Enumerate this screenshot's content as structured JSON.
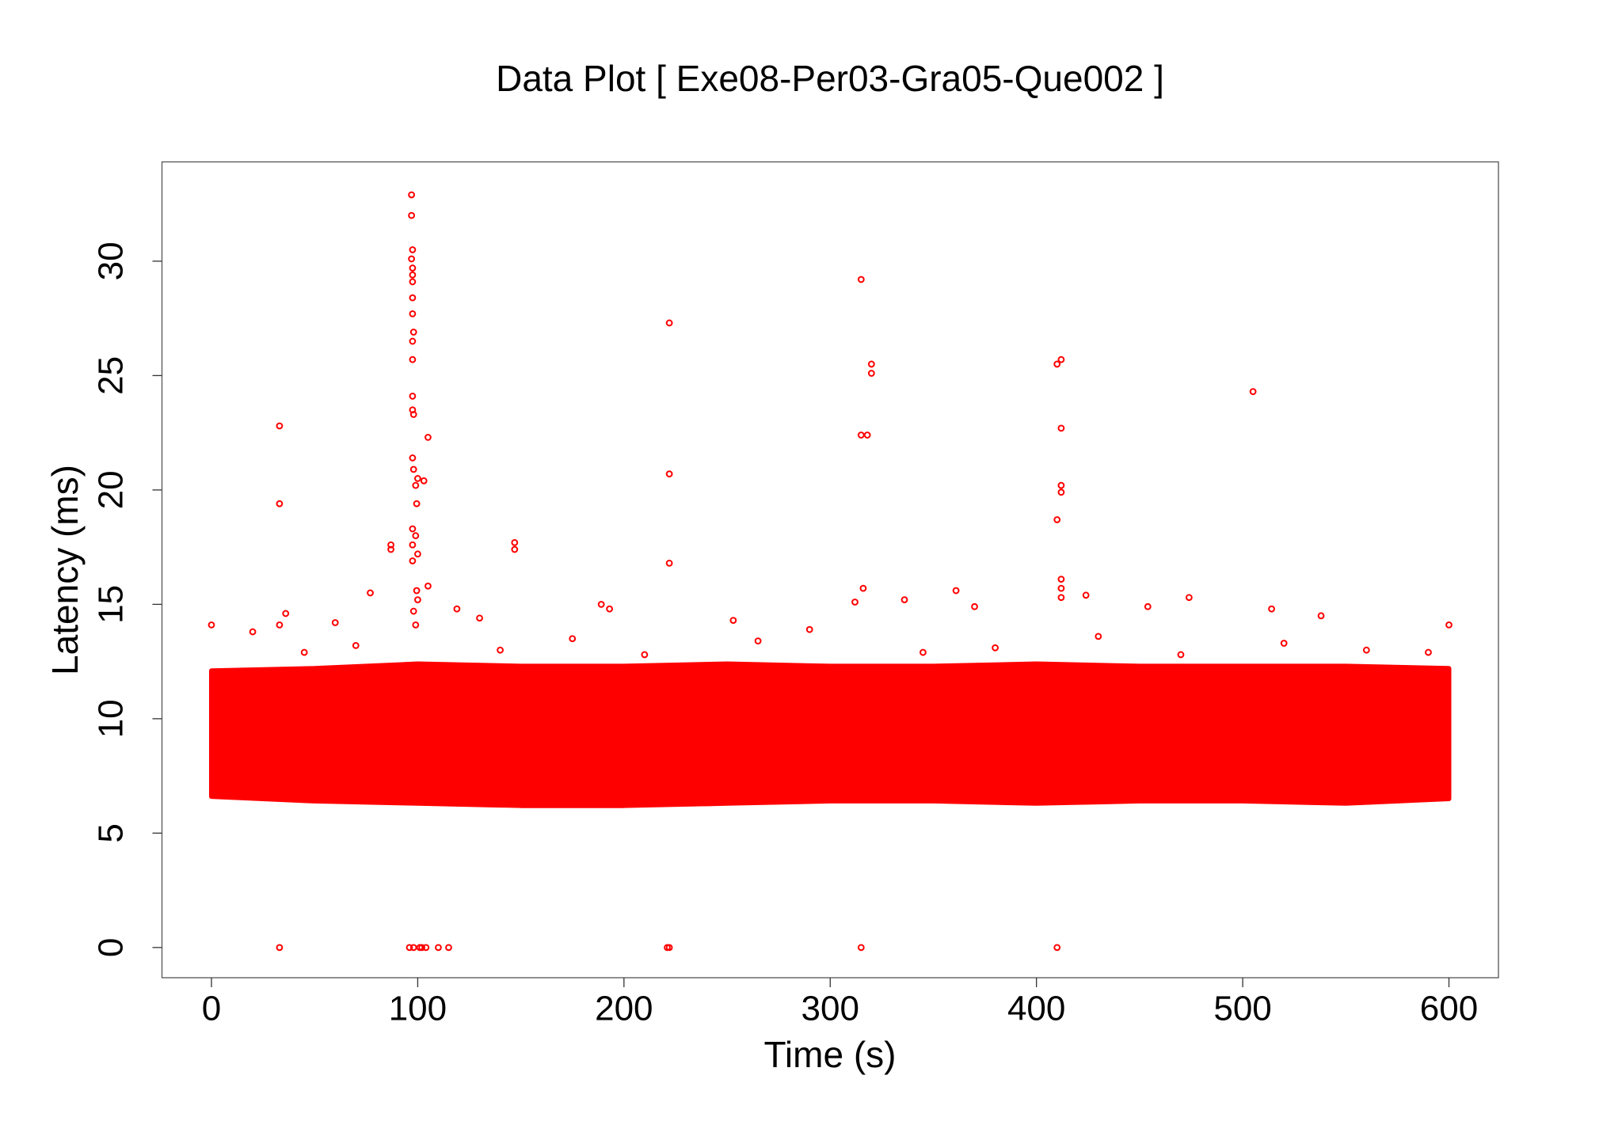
{
  "chart_data": {
    "type": "scatter",
    "title": "Data Plot [ Exe08-Per03-Gra05-Que002 ]",
    "x_label": "Time (s)",
    "y_label": "Latency (ms)",
    "xlim": [
      -24,
      624
    ],
    "ylim": [
      -1.32,
      34.34
    ],
    "xticks": [
      0,
      100,
      200,
      300,
      400,
      500,
      600
    ],
    "yticks": [
      0,
      5,
      10,
      15,
      20,
      25,
      30
    ],
    "color": "#ff0000",
    "band": {
      "x": [
        0,
        50,
        100,
        150,
        200,
        250,
        300,
        350,
        400,
        450,
        500,
        550,
        600
      ],
      "upper": [
        12.1,
        12.2,
        12.4,
        12.3,
        12.3,
        12.4,
        12.3,
        12.3,
        12.4,
        12.3,
        12.3,
        12.3,
        12.2
      ],
      "lower": [
        6.6,
        6.4,
        6.3,
        6.2,
        6.2,
        6.3,
        6.4,
        6.4,
        6.3,
        6.4,
        6.4,
        6.3,
        6.5
      ]
    },
    "series": [
      {
        "color": "#ff0000",
        "x": [
          33,
          33,
          33,
          33,
          97,
          97,
          97.5,
          97,
          97.5,
          97.5,
          97.5,
          97.5,
          97.5,
          98,
          97.5,
          97.5,
          97.5,
          97.5,
          98,
          97.5,
          98,
          100,
          99,
          99.5,
          97.5,
          99,
          97.5,
          100,
          97.5,
          99.5,
          100,
          98,
          99,
          105,
          103,
          105,
          87,
          87,
          77,
          147,
          147,
          222,
          222,
          222,
          222,
          315,
          315,
          315,
          316,
          312,
          320,
          320,
          318,
          410,
          410,
          410,
          412,
          412,
          412,
          412,
          412,
          412,
          412,
          505,
          96,
          98,
          101,
          102,
          104,
          110,
          115,
          221,
          189,
          193,
          253,
          336,
          361,
          370,
          424,
          454,
          474,
          514,
          538,
          600,
          0,
          119,
          130,
          36,
          60,
          20,
          45,
          70,
          140,
          175,
          210,
          265,
          290,
          345,
          380,
          430,
          470,
          520,
          560,
          590
        ],
        "values": [
          22.8,
          19.4,
          0,
          14.1,
          32.9,
          32.0,
          30.5,
          30.1,
          29.7,
          29.4,
          29.1,
          28.4,
          27.7,
          26.9,
          26.5,
          25.7,
          24.1,
          23.5,
          23.3,
          21.4,
          20.9,
          20.5,
          20.2,
          19.4,
          18.3,
          18.0,
          17.6,
          17.2,
          16.9,
          15.6,
          15.2,
          14.7,
          14.1,
          22.3,
          20.4,
          15.8,
          17.6,
          17.4,
          15.5,
          17.7,
          17.4,
          27.3,
          20.7,
          16.8,
          0,
          29.2,
          22.4,
          0,
          15.7,
          15.1,
          25.5,
          25.1,
          22.4,
          25.5,
          18.7,
          0,
          25.7,
          22.7,
          20.2,
          19.9,
          16.1,
          15.7,
          15.3,
          24.3,
          0,
          0,
          0,
          0,
          0,
          0,
          0,
          0,
          15.0,
          14.8,
          14.3,
          15.2,
          15.6,
          14.9,
          15.4,
          14.9,
          15.3,
          14.8,
          14.5,
          14.1,
          14.1,
          14.8,
          14.4,
          14.6,
          14.2,
          13.8,
          12.9,
          13.2,
          13.0,
          13.5,
          12.8,
          13.4,
          13.9,
          12.9,
          13.1,
          13.6,
          12.8,
          13.3,
          13.0,
          12.9
        ]
      }
    ]
  }
}
